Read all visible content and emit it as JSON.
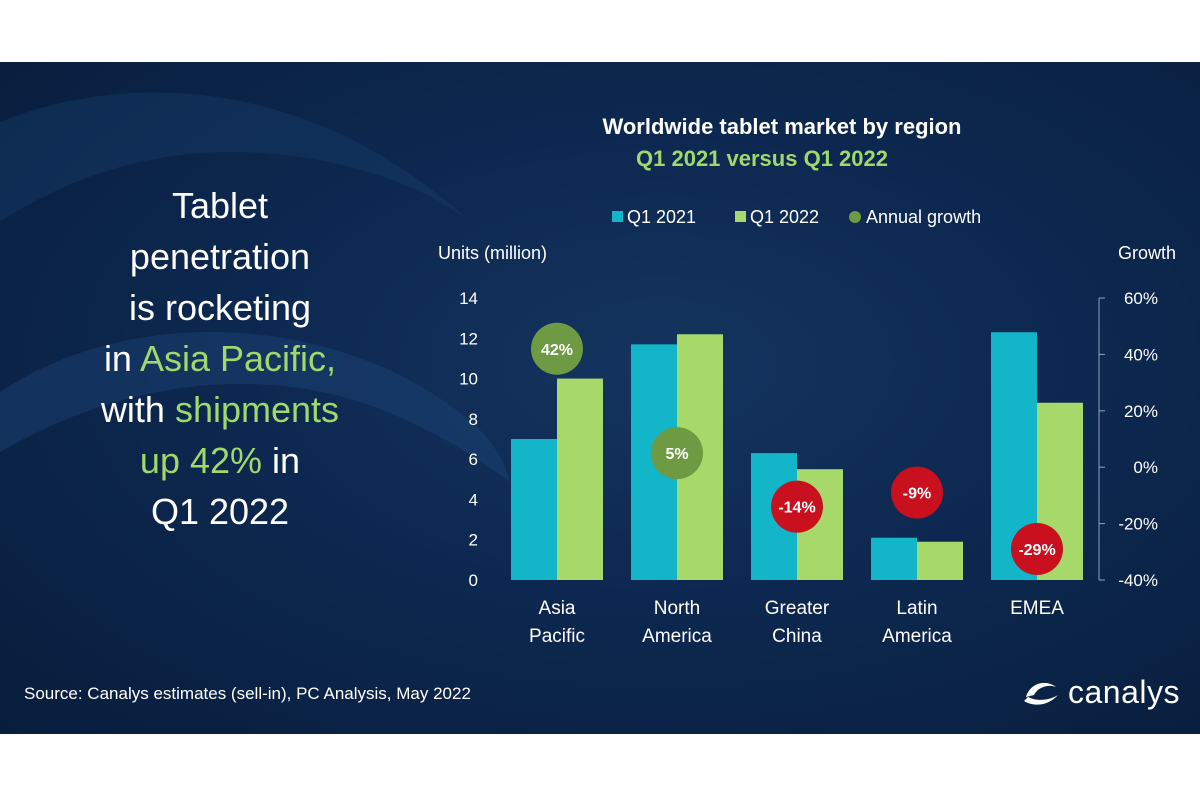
{
  "headline": {
    "line1": "Tablet",
    "line2": "penetration",
    "line3": "is rocketing",
    "line4_prefix": "in ",
    "line4_highlight": "Asia Pacific,",
    "line5_prefix": "with ",
    "line5_highlight": "shipments",
    "line6_highlight": "up 42%",
    "line6_suffix": " in",
    "line7": "Q1 2022"
  },
  "source": "Source: Canalys estimates (sell-in), PC Analysis, May 2022",
  "brand": {
    "name": "canalys",
    "logo_icon": "canalys-swoosh-icon"
  },
  "colors": {
    "q1_2021": "#13b5c8",
    "q1_2022": "#a6d86a",
    "growth_positive": "#6e9a43",
    "growth_negative": "#c8101e",
    "highlight_text": "#9fd86b"
  },
  "chart_data": {
    "type": "bar",
    "title": "Worldwide tablet market by region",
    "subtitle": "Q1 2021 versus Q1 2022",
    "ylabel": "Units (million)",
    "y2label": "Growth",
    "categories": [
      [
        "Asia",
        "Pacific"
      ],
      [
        "North",
        "America"
      ],
      [
        "Greater",
        "China"
      ],
      [
        "Latin",
        "America"
      ],
      [
        "EMEA"
      ]
    ],
    "series": [
      {
        "name": "Q1 2021",
        "values": [
          7.0,
          11.7,
          6.3,
          2.1,
          12.3
        ]
      },
      {
        "name": "Q1 2022",
        "values": [
          10.0,
          12.2,
          5.5,
          1.9,
          8.8
        ]
      }
    ],
    "growth": {
      "name": "Annual growth",
      "values": [
        42,
        5,
        -14,
        -9,
        -29
      ],
      "labels": [
        "42%",
        "5%",
        "-14%",
        "-9%",
        "-29%"
      ]
    },
    "ylim": [
      0,
      14
    ],
    "yticks": [
      0,
      2,
      4,
      6,
      8,
      10,
      12,
      14
    ],
    "y2lim": [
      -40,
      60
    ],
    "y2ticks": [
      "60%",
      "40%",
      "20%",
      "0%",
      "-20%",
      "-40%"
    ],
    "legend_position": "top",
    "grid": false
  }
}
